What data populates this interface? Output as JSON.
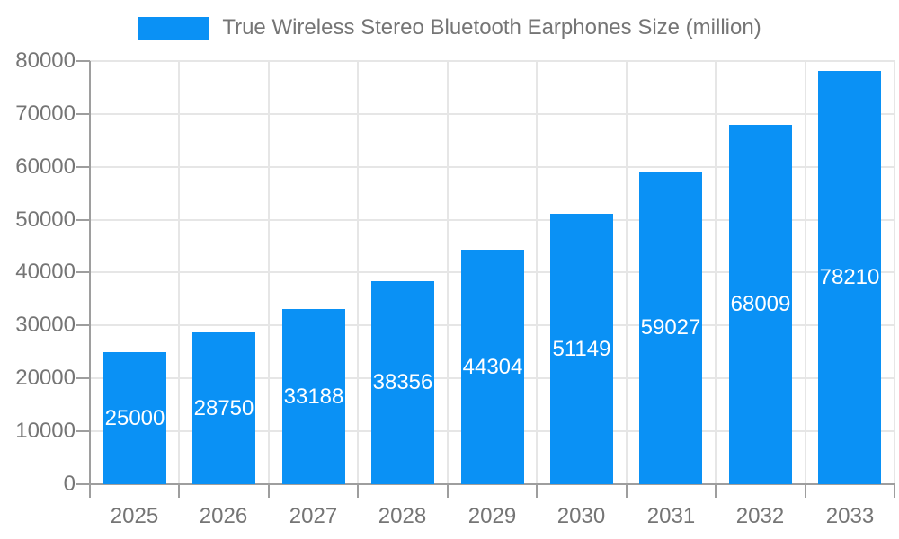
{
  "colors": {
    "bar": "#0A91F5",
    "axis": "#9E9E9E",
    "grid": "#E6E6E6",
    "text": "#757575",
    "bar_label": "#FFFFFF",
    "background": "#FFFFFF"
  },
  "legend": {
    "label": "True Wireless Stereo Bluetooth Earphones Size (million)"
  },
  "chart_data": {
    "type": "bar",
    "title": "True Wireless Stereo Bluetooth Earphones Size (million)",
    "categories": [
      "2025",
      "2026",
      "2027",
      "2028",
      "2029",
      "2030",
      "2031",
      "2032",
      "2033"
    ],
    "values": [
      25000,
      28750,
      33188,
      38356,
      44304,
      51149,
      59027,
      68009,
      78210
    ],
    "xlabel": "",
    "ylabel": "",
    "ylim": [
      0,
      80000
    ],
    "ytick_step": 10000,
    "yticks": [
      0,
      10000,
      20000,
      30000,
      40000,
      50000,
      60000,
      70000,
      80000
    ],
    "grid": true,
    "legend_position": "top-center",
    "bar_label_position": "inside-center"
  }
}
